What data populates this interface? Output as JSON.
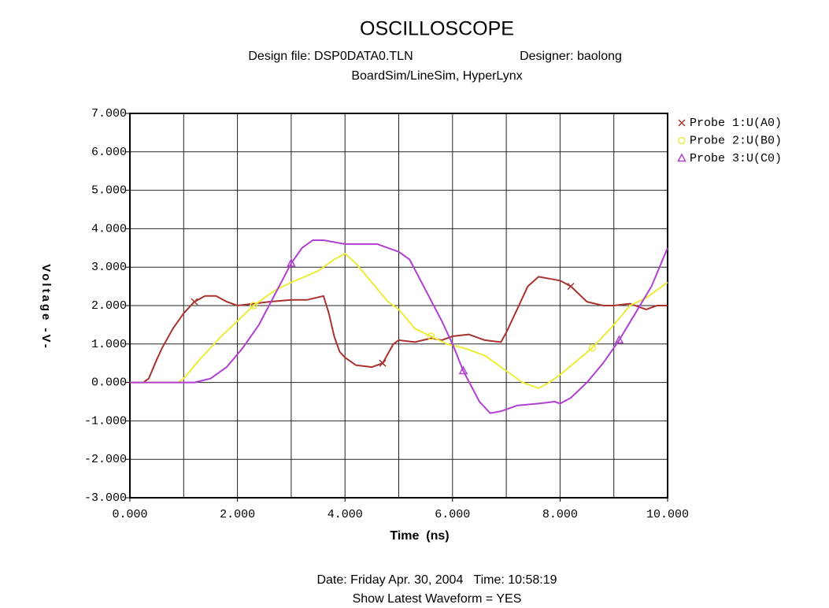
{
  "chart_data": {
    "type": "line",
    "title": "OSCILLOSCOPE",
    "subtitle": [
      "Design file: DSP0DATA0.TLN",
      "Designer: baolong",
      "BoardSim/LineSim, HyperLynx"
    ],
    "x_label": "Time  (ns)",
    "y_label": "Voltage -V-",
    "footer": [
      "Date: Friday Apr. 30, 2004   Time: 10:58:19",
      "Show Latest Waveform = YES"
    ],
    "xlim": [
      0,
      10
    ],
    "ylim": [
      -3,
      7
    ],
    "xticks": [
      {
        "value": 0,
        "label": "0.000"
      },
      {
        "value": 2,
        "label": "2.000"
      },
      {
        "value": 4,
        "label": "4.000"
      },
      {
        "value": 6,
        "label": "6.000"
      },
      {
        "value": 8,
        "label": "8.000"
      },
      {
        "value": 10,
        "label": "10.000"
      }
    ],
    "minor_xticks": [
      1,
      3,
      5,
      7,
      9
    ],
    "yticks": [
      {
        "value": -3,
        "label": "-3.000"
      },
      {
        "value": -2,
        "label": "-2.000"
      },
      {
        "value": -1,
        "label": "-1.000"
      },
      {
        "value": 0,
        "label": "0.000"
      },
      {
        "value": 1,
        "label": "1.000"
      },
      {
        "value": 2,
        "label": "2.000"
      },
      {
        "value": 3,
        "label": "3.000"
      },
      {
        "value": 4,
        "label": "4.000"
      },
      {
        "value": 5,
        "label": "5.000"
      },
      {
        "value": 6,
        "label": "6.000"
      },
      {
        "value": 7,
        "label": "7.000"
      }
    ],
    "grid": true,
    "legend": "right",
    "series": [
      {
        "name": "Probe 1:U(A0)",
        "color": "#a8322e",
        "marker": "x",
        "x": [
          0,
          0.25,
          0.35,
          0.5,
          0.6,
          0.8,
          1.0,
          1.2,
          1.4,
          1.6,
          1.8,
          2.0,
          2.3,
          2.6,
          3.0,
          3.3,
          3.6,
          3.7,
          3.8,
          3.9,
          4.0,
          4.2,
          4.5,
          4.7,
          4.9,
          5.0,
          5.3,
          5.6,
          5.8,
          6.0,
          6.3,
          6.6,
          6.9,
          7.0,
          7.2,
          7.4,
          7.6,
          7.8,
          8.0,
          8.2,
          8.5,
          8.8,
          9.0,
          9.3,
          9.6,
          9.8,
          10
        ],
        "values": [
          0,
          0,
          0.1,
          0.6,
          0.9,
          1.4,
          1.8,
          2.1,
          2.25,
          2.25,
          2.1,
          2.0,
          2.05,
          2.1,
          2.15,
          2.15,
          2.25,
          1.8,
          1.2,
          0.8,
          0.65,
          0.45,
          0.4,
          0.5,
          1.0,
          1.1,
          1.05,
          1.15,
          1.1,
          1.2,
          1.25,
          1.1,
          1.05,
          1.3,
          1.9,
          2.5,
          2.75,
          2.7,
          2.65,
          2.5,
          2.1,
          2.0,
          2.0,
          2.05,
          1.9,
          2.0,
          2.0
        ]
      },
      {
        "name": "Probe 2:U(B0)",
        "color": "#ecec3a",
        "marker": "o",
        "x": [
          0,
          0.9,
          1.0,
          1.3,
          1.7,
          2.0,
          2.3,
          2.7,
          3.0,
          3.5,
          3.8,
          4.0,
          4.2,
          4.5,
          4.8,
          5.0,
          5.3,
          5.6,
          5.9,
          6.2,
          6.6,
          7.0,
          7.3,
          7.6,
          7.8,
          8.0,
          8.3,
          8.6,
          9.0,
          9.3,
          9.6,
          10
        ],
        "values": [
          0,
          0,
          0.1,
          0.6,
          1.2,
          1.6,
          2.0,
          2.4,
          2.6,
          2.9,
          3.2,
          3.35,
          3.1,
          2.6,
          2.1,
          1.9,
          1.4,
          1.2,
          1.0,
          0.9,
          0.7,
          0.3,
          0,
          -0.15,
          0,
          0.2,
          0.55,
          0.9,
          1.5,
          2.0,
          2.2,
          2.6
        ]
      },
      {
        "name": "Probe 3:U(C0)",
        "color": "#b040d0",
        "marker": "triangle",
        "x": [
          0,
          1.2,
          1.5,
          1.8,
          2.1,
          2.4,
          2.7,
          3.0,
          3.2,
          3.4,
          3.6,
          4.0,
          4.3,
          4.6,
          5.0,
          5.2,
          5.5,
          5.8,
          6.0,
          6.2,
          6.5,
          6.7,
          6.9,
          7.2,
          7.6,
          7.9,
          8.0,
          8.2,
          8.5,
          8.8,
          9.1,
          9.4,
          9.7,
          10
        ],
        "values": [
          0,
          0,
          0.1,
          0.4,
          0.9,
          1.5,
          2.3,
          3.1,
          3.5,
          3.7,
          3.7,
          3.6,
          3.6,
          3.6,
          3.4,
          3.2,
          2.4,
          1.6,
          1.0,
          0.3,
          -0.5,
          -0.8,
          -0.75,
          -0.6,
          -0.55,
          -0.5,
          -0.55,
          -0.4,
          0,
          0.5,
          1.1,
          1.8,
          2.5,
          3.5
        ]
      }
    ]
  }
}
